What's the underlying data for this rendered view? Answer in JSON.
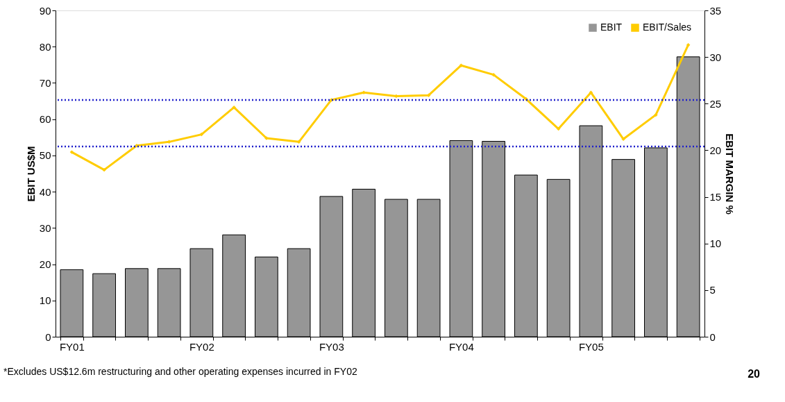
{
  "chart_data": {
    "type": "bar",
    "categories": [
      "FY01",
      null,
      null,
      null,
      "FY02",
      null,
      null,
      null,
      "FY03",
      null,
      null,
      null,
      "FY04",
      null,
      null,
      null,
      "FY05",
      null,
      null,
      null
    ],
    "series": [
      {
        "name": "EBIT",
        "color": "#969696",
        "values": [
          18.5,
          17.4,
          18.8,
          18.8,
          24.3,
          28.1,
          22.0,
          24.3,
          38.7,
          40.7,
          37.9,
          37.9,
          54.1,
          53.9,
          44.6,
          43.4,
          58.2,
          48.9,
          52.1,
          77.2
        ]
      },
      {
        "name": "EBIT/Sales",
        "type": "line",
        "axis": "y2",
        "color": "#ffcc00",
        "marker": "diamond",
        "values": [
          19.8,
          17.9,
          20.5,
          20.9,
          21.7,
          24.6,
          21.3,
          20.9,
          25.4,
          26.2,
          25.8,
          25.9,
          29.1,
          28.1,
          25.5,
          22.3,
          26.2,
          21.2,
          23.8,
          31.3
        ]
      }
    ],
    "ylabel": "EBIT US$M",
    "y2label": "EBIT MARGIN %",
    "ylim": [
      0,
      90
    ],
    "yticks": [
      0,
      10,
      20,
      30,
      40,
      50,
      60,
      70,
      80,
      90
    ],
    "y2lim": [
      0,
      35
    ],
    "y2ticks": [
      0,
      5,
      10,
      15,
      20,
      25,
      30,
      35
    ],
    "ref_lines": [
      {
        "axis": "y2",
        "value": 25.4,
        "color": "#2020cc",
        "line_style": "dotted"
      },
      {
        "axis": "y2",
        "value": 20.4,
        "color": "#2020cc",
        "line_style": "dotted"
      }
    ],
    "annotations": [
      "*Excludes US$12.6m restructuring and other operating expenses incurred in FY02",
      "20"
    ],
    "legend": "top right",
    "grid": false
  }
}
